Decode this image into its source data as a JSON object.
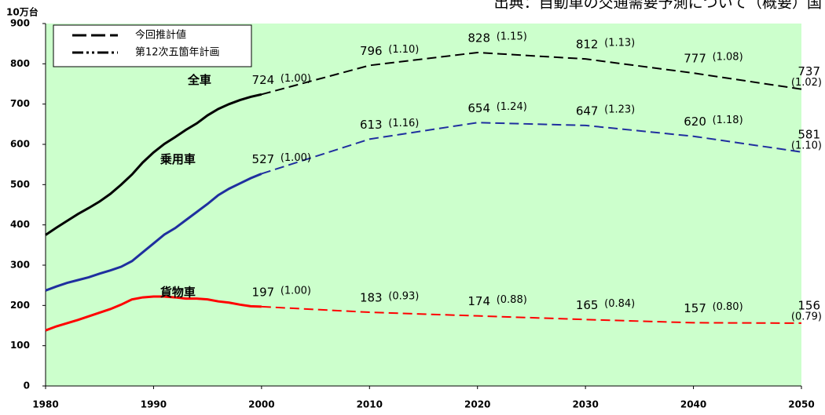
{
  "chart_data": {
    "type": "line",
    "title": "出典：自動車の交通需要予測について（概要）国",
    "y_unit": "10万台",
    "x": [
      1980,
      1981,
      1982,
      1983,
      1984,
      1985,
      1986,
      1987,
      1988,
      1989,
      1990,
      1991,
      1992,
      1993,
      1994,
      1995,
      1996,
      1997,
      1998,
      1999,
      2000,
      2010,
      2020,
      2030,
      2040,
      2050
    ],
    "forecast_start": 2000,
    "series": [
      {
        "name": "全車",
        "color": "#000000",
        "values": [
          375,
          393,
          410,
          427,
          442,
          458,
          477,
          500,
          525,
          555,
          580,
          601,
          618,
          636,
          652,
          672,
          688,
          700,
          710,
          718,
          724,
          796,
          828,
          812,
          777,
          737
        ],
        "ratios": [
          null,
          null,
          null,
          null,
          null,
          null,
          null,
          null,
          null,
          null,
          null,
          null,
          null,
          null,
          null,
          null,
          null,
          null,
          null,
          null,
          1.0,
          1.1,
          1.15,
          1.13,
          1.08,
          1.02
        ],
        "ratio_labels": [
          null,
          null,
          null,
          null,
          null,
          null,
          null,
          null,
          null,
          null,
          null,
          null,
          null,
          null,
          null,
          null,
          null,
          null,
          null,
          null,
          "(1.00)",
          "(1.10)",
          "(1.15)",
          "(1.13)",
          "(1.08)",
          "(1.02)"
        ]
      },
      {
        "name": "乗用車",
        "color": "#1f2f9f",
        "values": [
          237,
          247,
          256,
          263,
          270,
          279,
          287,
          296,
          310,
          332,
          354,
          376,
          392,
          412,
          432,
          452,
          474,
          490,
          503,
          516,
          527,
          613,
          654,
          647,
          620,
          581
        ],
        "ratios": [
          null,
          null,
          null,
          null,
          null,
          null,
          null,
          null,
          null,
          null,
          null,
          null,
          null,
          null,
          null,
          null,
          null,
          null,
          null,
          null,
          1.0,
          1.16,
          1.24,
          1.23,
          1.18,
          1.1
        ],
        "ratio_labels": [
          null,
          null,
          null,
          null,
          null,
          null,
          null,
          null,
          null,
          null,
          null,
          null,
          null,
          null,
          null,
          null,
          null,
          null,
          null,
          null,
          "(1.00)",
          "(1.16)",
          "(1.24)",
          "(1.23)",
          "(1.18)",
          "(1.10)"
        ]
      },
      {
        "name": "貨物車",
        "color": "#ff0000",
        "values": [
          138,
          148,
          156,
          164,
          173,
          182,
          191,
          202,
          215,
          220,
          222,
          222,
          220,
          217,
          217,
          215,
          210,
          207,
          202,
          198,
          197,
          183,
          174,
          165,
          157,
          156
        ],
        "ratios": [
          null,
          null,
          null,
          null,
          null,
          null,
          null,
          null,
          null,
          null,
          null,
          null,
          null,
          null,
          null,
          null,
          null,
          null,
          null,
          null,
          1.0,
          0.93,
          0.88,
          0.84,
          0.8,
          0.79
        ],
        "ratio_labels": [
          null,
          null,
          null,
          null,
          null,
          null,
          null,
          null,
          null,
          null,
          null,
          null,
          null,
          null,
          null,
          null,
          null,
          null,
          null,
          null,
          "(1.00)",
          "(0.93)",
          "(0.88)",
          "(0.84)",
          "(0.80)",
          "(0.79)"
        ]
      }
    ],
    "legend": [
      {
        "label": "今回推計値",
        "style": "dashed"
      },
      {
        "label": "第12次五箇年計画",
        "style": "dash-dot"
      }
    ],
    "xlim": [
      1980,
      2050
    ],
    "xticks": [
      1980,
      1990,
      2000,
      2010,
      2020,
      2030,
      2040,
      2050
    ],
    "ylim": [
      0,
      900
    ],
    "yticks": [
      0,
      100,
      200,
      300,
      400,
      500,
      600,
      700,
      800,
      900
    ],
    "plot_background": "#ccffcc"
  }
}
